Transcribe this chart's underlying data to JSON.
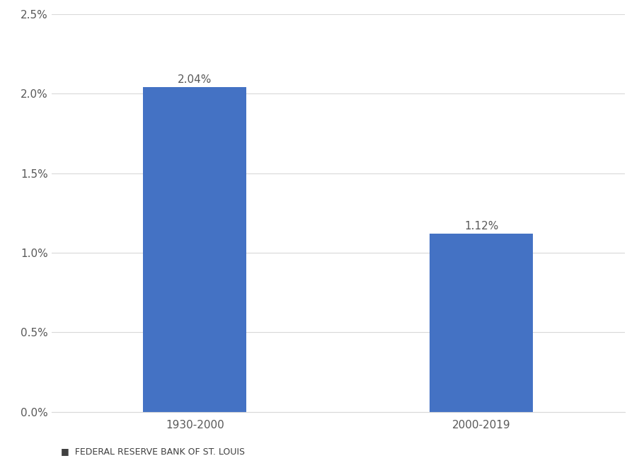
{
  "categories": [
    "1930-2000",
    "2000-2019"
  ],
  "values": [
    2.04,
    1.12
  ],
  "bar_color": "#4472C4",
  "ylim": [
    0,
    2.5
  ],
  "yticks": [
    0.0,
    0.5,
    1.0,
    1.5,
    2.0,
    2.5
  ],
  "ytick_labels": [
    "0.0%",
    "0.5%",
    "1.0%",
    "1.5%",
    "2.0%",
    "2.5%"
  ],
  "data_labels": [
    "2.04%",
    "1.12%"
  ],
  "footer_text": "FEDERAL RESERVE BANK OF ST. LOUIS",
  "background_color": "#ffffff",
  "label_fontsize": 11,
  "tick_fontsize": 11,
  "xtick_color": "#595959",
  "ytick_color": "#595959",
  "footer_fontsize": 9,
  "bar_width": 0.18,
  "x_positions": [
    0.25,
    0.75
  ],
  "xlim": [
    0,
    1.0
  ]
}
